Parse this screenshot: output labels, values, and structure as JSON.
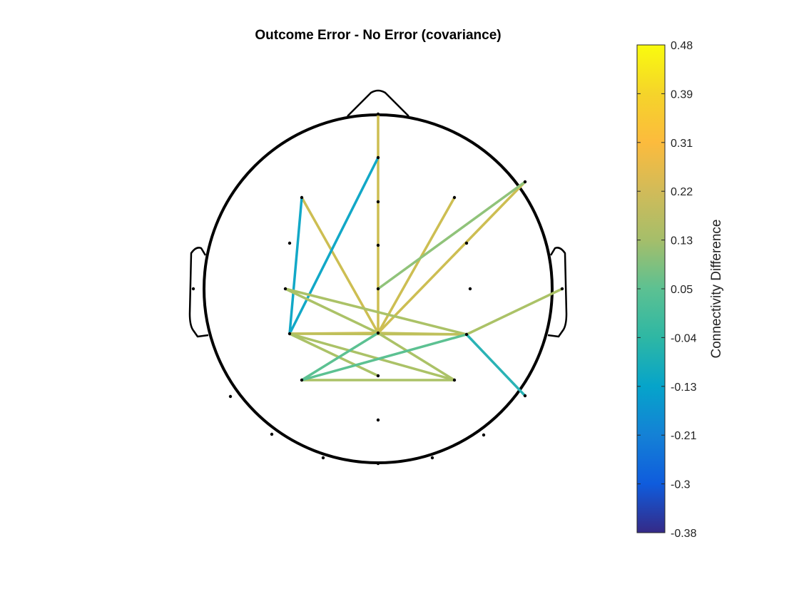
{
  "title": "Outcome Error - No Error (covariance)",
  "colorbar": {
    "label": "Connectivity Difference",
    "min": -0.38,
    "max": 0.48,
    "tick_labels": [
      "0.48",
      "0.39",
      "0.31",
      "0.22",
      "0.13",
      "0.05",
      "-0.04",
      "-0.13",
      "-0.21",
      "-0.3",
      "-0.38"
    ],
    "colormap": "parula"
  },
  "chart_data": {
    "type": "connectivity-topoplot",
    "colorbar_range": [
      -0.38,
      0.48
    ],
    "connection_colors": {
      "strong_positive": "#CDBE52",
      "mid_positive": "#ABC267",
      "weak_positive": "#5CC192",
      "near_zero": "#2AB3B5",
      "negative_small": "#12A8C7"
    }
  }
}
